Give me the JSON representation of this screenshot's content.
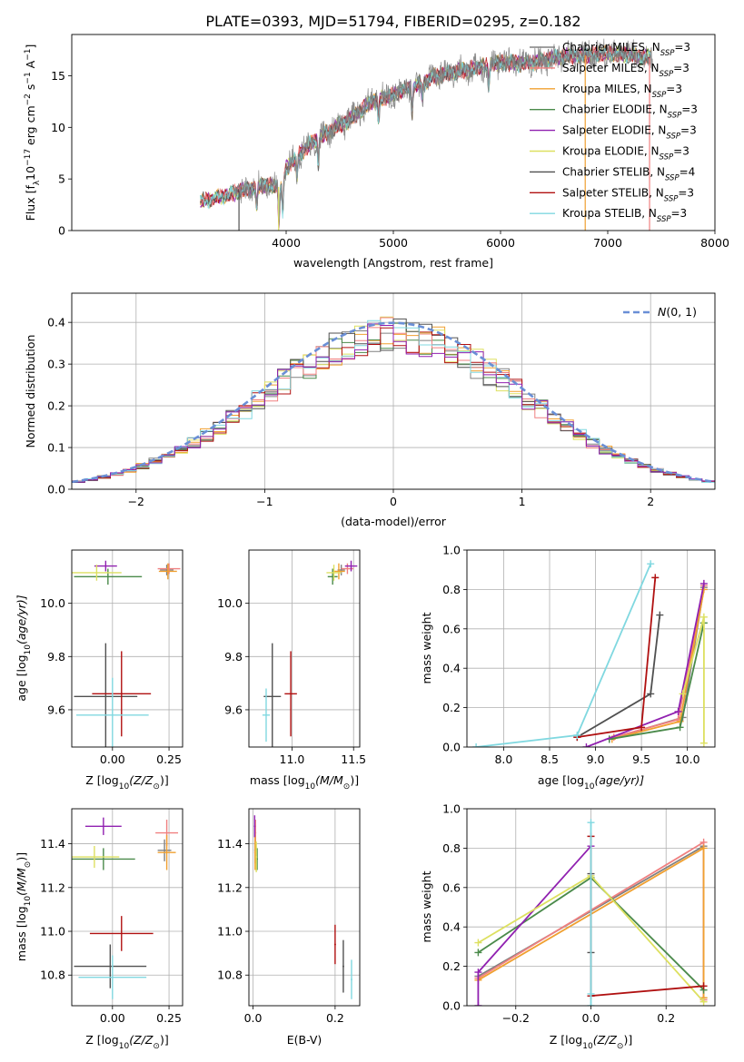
{
  "figure_title": "PLATE=0393, MJD=51794, FIBERID=0295, z=0.182",
  "colors": {
    "chabrier_miles": "#808080",
    "salpeter_miles": "#f08080",
    "kroupa_miles": "#f0a030",
    "chabrier_elodie": "#4a8a4a",
    "salpeter_elodie": "#9020b0",
    "kroupa_elodie": "#dde060",
    "chabrier_stelib": "#505050",
    "salpeter_stelib": "#b01010",
    "kroupa_stelib": "#80d8e0",
    "normal": "#6a8fd6",
    "grid": "#b0b0b0"
  },
  "chart_data": [
    {
      "id": "spectrum",
      "type": "line",
      "title": "PLATE=0393, MJD=51794, FIBERID=0295, z=0.182",
      "xlabel": "wavelength [Angstrom, rest frame]",
      "ylabel": "Flux [f",
      "ylabel_parts": [
        "Flux [f",
        "λ",
        "10",
        "−17",
        " erg cm",
        "−2",
        " s",
        "−1",
        " A",
        "−1",
        "]"
      ],
      "xlim": [
        2000,
        8000
      ],
      "ylim": [
        0,
        19
      ],
      "xticks": [
        4000,
        5000,
        6000,
        7000,
        8000
      ],
      "yticks": [
        0,
        5,
        10,
        15
      ],
      "grid": false,
      "legend_loc": "right",
      "legend": [
        {
          "text": "Chabrier MILES, N",
          "sub": "SSP",
          "tail": "=3",
          "color_key": "chabrier_miles"
        },
        {
          "text": "Salpeter MILES, N",
          "sub": "SSP",
          "tail": "=3",
          "color_key": "salpeter_miles"
        },
        {
          "text": "Kroupa MILES, N",
          "sub": "SSP",
          "tail": "=3",
          "color_key": "kroupa_miles"
        },
        {
          "text": "Chabrier ELODIE, N",
          "sub": "SSP",
          "tail": "=3",
          "color_key": "chabrier_elodie"
        },
        {
          "text": "Salpeter ELODIE, N",
          "sub": "SSP",
          "tail": "=3",
          "color_key": "salpeter_elodie"
        },
        {
          "text": "Kroupa ELODIE, N",
          "sub": "SSP",
          "tail": "=3",
          "color_key": "kroupa_elodie"
        },
        {
          "text": "Chabrier STELIB, N",
          "sub": "SSP",
          "tail": "=4",
          "color_key": "chabrier_stelib"
        },
        {
          "text": "Salpeter STELIB, N",
          "sub": "SSP",
          "tail": "=3",
          "color_key": "salpeter_stelib"
        },
        {
          "text": "Kroupa STELIB, N",
          "sub": "SSP",
          "tail": "=3",
          "color_key": "kroupa_stelib"
        }
      ],
      "continuum": [
        [
          3200,
          2.8
        ],
        [
          3400,
          3.3
        ],
        [
          3600,
          3.9
        ],
        [
          3800,
          4.4
        ],
        [
          3950,
          4.2
        ],
        [
          4000,
          6.0
        ],
        [
          4200,
          8.2
        ],
        [
          4400,
          9.6
        ],
        [
          4600,
          10.8
        ],
        [
          4800,
          12.5
        ],
        [
          5000,
          13.2
        ],
        [
          5200,
          14.0
        ],
        [
          5400,
          15.0
        ],
        [
          5600,
          15.4
        ],
        [
          5800,
          15.8
        ],
        [
          6000,
          16.3
        ],
        [
          6200,
          16.2
        ],
        [
          6400,
          16.5
        ],
        [
          6600,
          16.9
        ],
        [
          6800,
          17.0
        ],
        [
          7000,
          17.2
        ],
        [
          7200,
          17.0
        ],
        [
          7400,
          16.7
        ]
      ],
      "dips": [
        [
          3725,
          2.0
        ],
        [
          3933,
          3.5
        ],
        [
          3968,
          3.0
        ],
        [
          4102,
          2.0
        ],
        [
          4300,
          2.5
        ],
        [
          4861,
          2.0
        ],
        [
          5175,
          2.5
        ],
        [
          5270,
          1.5
        ],
        [
          5890,
          2.0
        ]
      ]
    },
    {
      "id": "residuals",
      "type": "line",
      "xlabel": "(data-model)/error",
      "ylabel": "Normed distribution",
      "xlim": [
        -2.5,
        2.5
      ],
      "ylim": [
        0,
        0.47
      ],
      "xticks": [
        -2,
        -1,
        0,
        1,
        2
      ],
      "yticks": [
        0.0,
        0.1,
        0.2,
        0.3,
        0.4
      ],
      "grid": true,
      "legend_loc": "top-right",
      "legend_label_main": "N",
      "legend_label_tail": "(0, 1)",
      "bin_width": 0.1
    },
    {
      "id": "age_vs_Z",
      "type": "scatter",
      "xlabel_main": "Z [log",
      "xlabel_sub": "10",
      "xlabel_tail": "(Z/Z",
      "xlabel_end": ")]",
      "ylabel_main": "age  [log",
      "ylabel_sub": "10",
      "ylabel_tail": "(age/yr)]",
      "xlim": [
        -0.18,
        0.31
      ],
      "ylim": [
        9.46,
        10.2
      ],
      "xticks": [
        0.0,
        0.25
      ],
      "yticks": [
        9.6,
        9.8,
        10.0
      ],
      "grid": true,
      "points": [
        {
          "color_key": "chabrier_miles",
          "x": 0.24,
          "y": 10.125,
          "xerr": 0.03,
          "yerr": 0.02
        },
        {
          "color_key": "salpeter_miles",
          "x": 0.25,
          "y": 10.13,
          "xerr": 0.05,
          "yerr": 0.02
        },
        {
          "color_key": "kroupa_miles",
          "x": 0.245,
          "y": 10.12,
          "xerr": 0.04,
          "yerr": 0.03
        },
        {
          "color_key": "chabrier_elodie",
          "x": -0.02,
          "y": 10.1,
          "xerr": 0.15,
          "yerr": 0.03
        },
        {
          "color_key": "salpeter_elodie",
          "x": -0.03,
          "y": 10.14,
          "xerr": 0.05,
          "yerr": 0.02
        },
        {
          "color_key": "kroupa_elodie",
          "x": -0.07,
          "y": 10.115,
          "xerr": 0.11,
          "yerr": 0.03
        },
        {
          "color_key": "chabrier_stelib",
          "x": -0.03,
          "y": 9.65,
          "xerr": 0.14,
          "yerr": 0.2
        },
        {
          "color_key": "salpeter_stelib",
          "x": 0.04,
          "y": 9.66,
          "xerr": 0.13,
          "yerr": 0.16
        },
        {
          "color_key": "kroupa_stelib",
          "x": 0.0,
          "y": 9.58,
          "xerr": 0.16,
          "yerr": 0.14
        }
      ]
    },
    {
      "id": "age_vs_mass",
      "type": "scatter",
      "xlabel_main": "mass [log",
      "xlabel_sub": "10",
      "xlabel_tail": "(M/M",
      "xlabel_end": ")]",
      "xlim": [
        10.65,
        11.55
      ],
      "ylim": [
        9.46,
        10.2
      ],
      "xticks": [
        11.0,
        11.5
      ],
      "yticks": [
        9.6,
        9.8,
        10.0
      ],
      "grid": true,
      "points": [
        {
          "color_key": "chabrier_miles",
          "x": 11.4,
          "y": 10.125,
          "xerr": 0.03,
          "yerr": 0.02
        },
        {
          "color_key": "salpeter_miles",
          "x": 11.45,
          "y": 10.13,
          "xerr": 0.05,
          "yerr": 0.02
        },
        {
          "color_key": "kroupa_miles",
          "x": 11.38,
          "y": 10.12,
          "xerr": 0.05,
          "yerr": 0.03
        },
        {
          "color_key": "chabrier_elodie",
          "x": 11.33,
          "y": 10.1,
          "xerr": 0.04,
          "yerr": 0.03
        },
        {
          "color_key": "salpeter_elodie",
          "x": 11.48,
          "y": 10.14,
          "xerr": 0.05,
          "yerr": 0.02
        },
        {
          "color_key": "kroupa_elodie",
          "x": 11.34,
          "y": 10.115,
          "xerr": 0.06,
          "yerr": 0.03
        },
        {
          "color_key": "chabrier_stelib",
          "x": 10.84,
          "y": 9.65,
          "xerr": 0.07,
          "yerr": 0.2
        },
        {
          "color_key": "salpeter_stelib",
          "x": 10.99,
          "y": 9.66,
          "xerr": 0.05,
          "yerr": 0.16
        },
        {
          "color_key": "kroupa_stelib",
          "x": 10.79,
          "y": 9.58,
          "xerr": 0.03,
          "yerr": 0.1
        }
      ]
    },
    {
      "id": "mass_weight_vs_age",
      "type": "line",
      "xlabel_main": "age  [log",
      "xlabel_sub": "10",
      "xlabel_tail": "(age/yr)]",
      "ylabel": "mass weight",
      "xlim": [
        7.6,
        10.3
      ],
      "ylim": [
        0,
        1.0
      ],
      "xticks": [
        8.0,
        8.5,
        9.0,
        9.5,
        10.0
      ],
      "yticks": [
        0.0,
        0.2,
        0.4,
        0.6,
        0.8,
        1.0
      ],
      "grid": true,
      "series": [
        {
          "color_key": "chabrier_miles",
          "x": [
            9.15,
            9.95,
            10.18
          ],
          "y": [
            0.04,
            0.15,
            0.81
          ]
        },
        {
          "color_key": "salpeter_miles",
          "x": [
            9.2,
            9.9,
            10.18
          ],
          "y": [
            0.05,
            0.14,
            0.82
          ]
        },
        {
          "color_key": "kroupa_miles",
          "x": [
            9.18,
            9.92,
            10.18
          ],
          "y": [
            0.04,
            0.13,
            0.8
          ]
        },
        {
          "color_key": "chabrier_elodie",
          "x": [
            9.15,
            9.92,
            10.18
          ],
          "y": [
            0.04,
            0.1,
            0.63
          ]
        },
        {
          "color_key": "salpeter_elodie",
          "x": [
            8.9,
            9.9,
            10.18
          ],
          "y": [
            0.0,
            0.18,
            0.83
          ]
        },
        {
          "color_key": "kroupa_elodie",
          "x": [
            9.95,
            10.18,
            10.18
          ],
          "y": [
            0.27,
            0.66,
            0.02
          ]
        },
        {
          "color_key": "chabrier_stelib",
          "x": [
            8.8,
            9.6,
            9.7
          ],
          "y": [
            0.05,
            0.27,
            0.67
          ]
        },
        {
          "color_key": "salpeter_stelib",
          "x": [
            8.8,
            9.5,
            9.65
          ],
          "y": [
            0.05,
            0.1,
            0.86
          ]
        },
        {
          "color_key": "kroupa_stelib",
          "x": [
            7.7,
            8.8,
            9.6
          ],
          "y": [
            0.0,
            0.06,
            0.93
          ]
        }
      ]
    },
    {
      "id": "mass_vs_Z",
      "type": "scatter",
      "xlabel_main": "Z [log",
      "xlabel_sub": "10",
      "xlabel_tail": "(Z/Z",
      "xlabel_end": ")]",
      "ylabel_main": "mass [log",
      "ylabel_sub": "10",
      "ylabel_tail": "(M/M",
      "ylabel_end": ")]",
      "xlim": [
        -0.18,
        0.31
      ],
      "ylim": [
        10.66,
        11.56
      ],
      "xticks": [
        0.0,
        0.25
      ],
      "yticks": [
        10.8,
        11.0,
        11.2,
        11.4
      ],
      "grid": true,
      "points": [
        {
          "color_key": "chabrier_miles",
          "x": 0.23,
          "y": 11.37,
          "xerr": 0.03,
          "yerr": 0.05
        },
        {
          "color_key": "salpeter_miles",
          "x": 0.24,
          "y": 11.45,
          "xerr": 0.05,
          "yerr": 0.06
        },
        {
          "color_key": "kroupa_miles",
          "x": 0.24,
          "y": 11.36,
          "xerr": 0.04,
          "yerr": 0.08
        },
        {
          "color_key": "chabrier_elodie",
          "x": -0.04,
          "y": 11.33,
          "xerr": 0.14,
          "yerr": 0.05
        },
        {
          "color_key": "salpeter_elodie",
          "x": -0.04,
          "y": 11.48,
          "xerr": 0.08,
          "yerr": 0.04
        },
        {
          "color_key": "kroupa_elodie",
          "x": -0.08,
          "y": 11.34,
          "xerr": 0.11,
          "yerr": 0.05
        },
        {
          "color_key": "chabrier_stelib",
          "x": -0.01,
          "y": 10.84,
          "xerr": 0.16,
          "yerr": 0.1
        },
        {
          "color_key": "salpeter_stelib",
          "x": 0.04,
          "y": 10.99,
          "xerr": 0.14,
          "yerr": 0.08
        },
        {
          "color_key": "kroupa_stelib",
          "x": 0.0,
          "y": 10.79,
          "xerr": 0.15,
          "yerr": 0.1
        }
      ]
    },
    {
      "id": "mass_vs_ebv",
      "type": "scatter",
      "xlabel": "E(B-V)",
      "xlim": [
        -0.01,
        0.26
      ],
      "ylim": [
        10.66,
        11.56
      ],
      "xticks": [
        0.0,
        0.2
      ],
      "yticks": [
        10.8,
        11.0,
        11.2,
        11.4
      ],
      "grid": true,
      "points": [
        {
          "color_key": "chabrier_miles",
          "x": 0.005,
          "y": 11.37,
          "xerr": 0.002,
          "yerr": 0.06
        },
        {
          "color_key": "salpeter_miles",
          "x": 0.006,
          "y": 11.45,
          "xerr": 0.002,
          "yerr": 0.06
        },
        {
          "color_key": "kroupa_miles",
          "x": 0.005,
          "y": 11.36,
          "xerr": 0.002,
          "yerr": 0.08
        },
        {
          "color_key": "chabrier_elodie",
          "x": 0.01,
          "y": 11.33,
          "xerr": 0.002,
          "yerr": 0.05
        },
        {
          "color_key": "salpeter_elodie",
          "x": 0.004,
          "y": 11.48,
          "xerr": 0.002,
          "yerr": 0.05
        },
        {
          "color_key": "kroupa_elodie",
          "x": 0.008,
          "y": 11.34,
          "xerr": 0.002,
          "yerr": 0.07
        },
        {
          "color_key": "chabrier_stelib",
          "x": 0.22,
          "y": 10.84,
          "xerr": 0.002,
          "yerr": 0.12
        },
        {
          "color_key": "salpeter_stelib",
          "x": 0.2,
          "y": 10.94,
          "xerr": 0.002,
          "yerr": 0.09
        },
        {
          "color_key": "kroupa_stelib",
          "x": 0.24,
          "y": 10.78,
          "xerr": 0.002,
          "yerr": 0.09
        }
      ]
    },
    {
      "id": "mass_weight_vs_Z",
      "type": "line",
      "xlabel_main": "Z [log",
      "xlabel_sub": "10",
      "xlabel_tail": "(Z/Z",
      "xlabel_end": ")]",
      "ylabel": "mass weight",
      "xlim": [
        -0.33,
        0.33
      ],
      "ylim": [
        0,
        1.0
      ],
      "xticks": [
        -0.2,
        0.0,
        0.2
      ],
      "yticks": [
        0.0,
        0.2,
        0.4,
        0.6,
        0.8,
        1.0
      ],
      "grid": true,
      "series": [
        {
          "color_key": "chabrier_miles",
          "x": [
            -0.3,
            0.3,
            0.3
          ],
          "y": [
            0.15,
            0.81,
            0.04
          ]
        },
        {
          "color_key": "salpeter_miles",
          "x": [
            -0.3,
            0.3,
            0.3
          ],
          "y": [
            0.14,
            0.83,
            0.03
          ]
        },
        {
          "color_key": "kroupa_miles",
          "x": [
            -0.3,
            0.3,
            0.3
          ],
          "y": [
            0.13,
            0.8,
            0.04
          ]
        },
        {
          "color_key": "chabrier_elodie",
          "x": [
            -0.3,
            0.0,
            0.3
          ],
          "y": [
            0.27,
            0.65,
            0.08
          ]
        },
        {
          "color_key": "salpeter_elodie",
          "x": [
            -0.3,
            -0.3,
            0.0
          ],
          "y": [
            0.0,
            0.17,
            0.81
          ]
        },
        {
          "color_key": "kroupa_elodie",
          "x": [
            -0.3,
            0.0,
            0.3
          ],
          "y": [
            0.32,
            0.66,
            0.02
          ]
        },
        {
          "color_key": "chabrier_stelib",
          "x": [
            0.0,
            0.0,
            0.0
          ],
          "y": [
            0.67,
            0.27,
            0.05
          ]
        },
        {
          "color_key": "salpeter_stelib",
          "x": [
            0.0,
            0.0,
            0.3
          ],
          "y": [
            0.86,
            0.05,
            0.1
          ]
        },
        {
          "color_key": "kroupa_stelib",
          "x": [
            0.0,
            0.0,
            0.0
          ],
          "y": [
            0.93,
            0.06,
            0.0
          ]
        }
      ]
    }
  ]
}
